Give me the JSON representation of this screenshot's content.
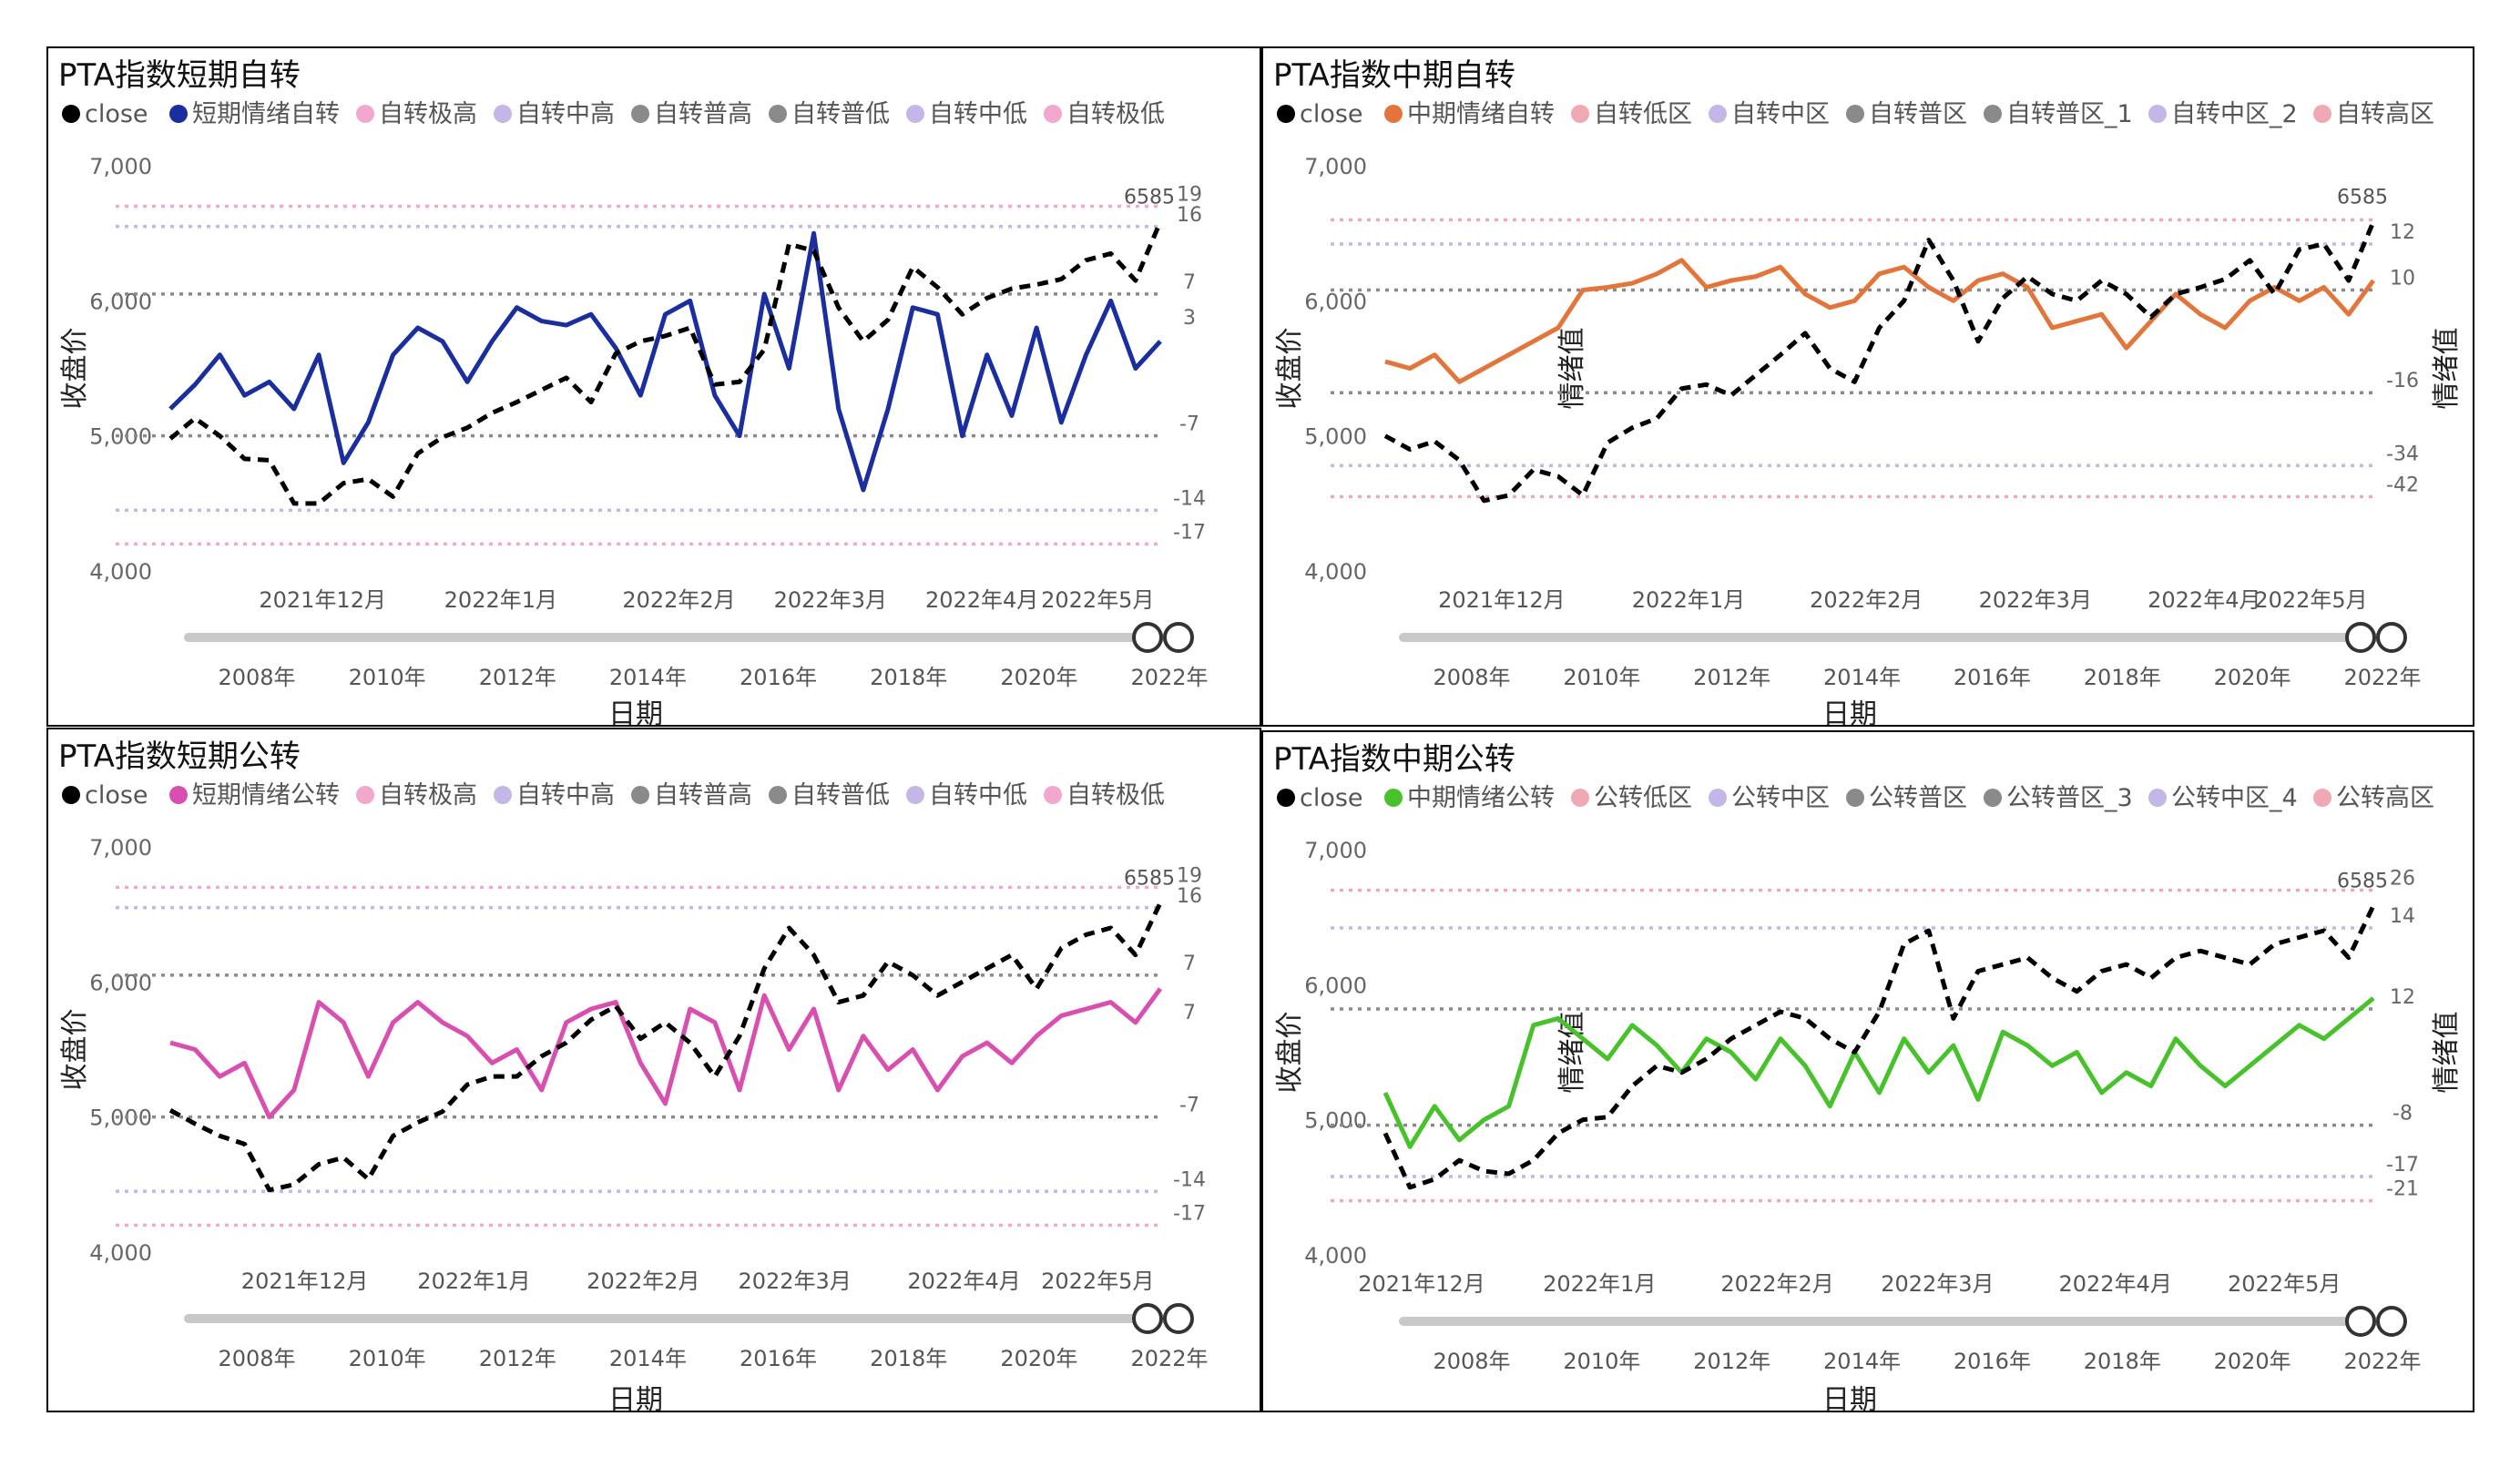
{
  "colors": {
    "close": "#000000",
    "blue": "#1a2ea0",
    "orange": "#e3743a",
    "pink": "#d94fb0",
    "green": "#47c22a",
    "extremeBand": "#f2a7cf",
    "midBand": "#c4b6e6",
    "normBand": "#8a8a8a",
    "lowHigh": "#f0a8b4"
  },
  "chart_data": [
    {
      "type": "line",
      "title": "PTA指数短期自转",
      "legend": [
        "close",
        "短期情绪自转",
        "自转极高",
        "自转中高",
        "自转普高",
        "自转普低",
        "自转中低",
        "自转极低"
      ],
      "legend_colors": [
        "#000000",
        "#1a2ea0",
        "#f2a7cf",
        "#c4b6e6",
        "#8a8a8a",
        "#8a8a8a",
        "#c4b6e6",
        "#f2a7cf"
      ],
      "ylabel": "收盘价",
      "y2label": "",
      "xlabel": "日期",
      "yticks": [
        "7,000",
        "6,000",
        "5,000",
        "4,000"
      ],
      "ylim": [
        4000,
        7000
      ],
      "xticks": [
        "2021年12月",
        "2022年1月",
        "2022年2月",
        "2022年3月",
        "2022年4月",
        "2022年5月"
      ],
      "xtick_pos": [
        0.13,
        0.33,
        0.53,
        0.7,
        0.87,
        1.0
      ],
      "slider_ticks": [
        "2008年",
        "2010年",
        "2012年",
        "2014年",
        "2016年",
        "2018年",
        "2020年",
        "2022年"
      ],
      "close_last": "6585",
      "bands": [
        {
          "name": "自转极高",
          "label": "19",
          "y": 6700,
          "color": "#f2a7cf"
        },
        {
          "name": "自转中高",
          "label": "16",
          "y": 6550,
          "color": "#c4b6e6"
        },
        {
          "name": "自转普高",
          "label": "7",
          "y": 6050,
          "color": "#8a8a8a"
        },
        {
          "name": "自转普低",
          "label": "-7",
          "y": 5000,
          "color": "#8a8a8a"
        },
        {
          "name": "自转中低",
          "label": "-14",
          "y": 4450,
          "color": "#c4b6e6"
        },
        {
          "name": "自转极低",
          "label": "-17",
          "y": 4200,
          "color": "#f2a7cf"
        }
      ],
      "side_labels": [
        {
          "label": "3",
          "y": 5880
        }
      ],
      "close_series": [
        4980,
        5130,
        5000,
        4830,
        4820,
        4500,
        4500,
        4650,
        4680,
        4550,
        4870,
        4990,
        5060,
        5170,
        5250,
        5340,
        5430,
        5250,
        5610,
        5700,
        5740,
        5800,
        5380,
        5400,
        5640,
        6420,
        6370,
        5950,
        5700,
        5860,
        6250,
        6100,
        5900,
        6020,
        6090,
        6120,
        6160,
        6300,
        6350,
        6150,
        6585
      ],
      "sentiment_series": [
        5200,
        5380,
        5600,
        5300,
        5400,
        5200,
        5600,
        4800,
        5100,
        5600,
        5800,
        5700,
        5400,
        5700,
        5950,
        5850,
        5820,
        5900,
        5650,
        5300,
        5900,
        6000,
        5300,
        5000,
        6050,
        5500,
        6500,
        5200,
        4600,
        5200,
        5950,
        5900,
        5000,
        5600,
        5150,
        5800,
        5100,
        5600,
        6000,
        5500,
        5700
      ]
    },
    {
      "type": "line",
      "title": "PTA指数中期自转",
      "legend": [
        "close",
        "中期情绪自转",
        "自转低区",
        "自转中区",
        "自转普区",
        "自转普区_1",
        "自转中区_2",
        "自转高区"
      ],
      "legend_colors": [
        "#000000",
        "#e3743a",
        "#f0a8b4",
        "#c4b6e6",
        "#8a8a8a",
        "#8a8a8a",
        "#c4b6e6",
        "#f0a8b4"
      ],
      "ylabel": "收盘价",
      "y2label": "情绪值",
      "xlabel": "日期",
      "yticks": [
        "7,000",
        "6,000",
        "5,000",
        "4,000"
      ],
      "ylim": [
        4000,
        7000
      ],
      "xticks": [
        "2021年12月",
        "2022年1月",
        "2022年2月",
        "2022年3月",
        "2022年4月",
        "2022年5月"
      ],
      "xtick_pos": [
        0.09,
        0.3,
        0.5,
        0.69,
        0.88,
        1.0
      ],
      "slider_ticks": [
        "2008年",
        "2010年",
        "2012年",
        "2014年",
        "2016年",
        "2018年",
        "2020年",
        "2022年"
      ],
      "close_last": "6585",
      "bands": [
        {
          "name": "自转高区",
          "label": "",
          "y": 6600,
          "color": "#f0a8b4"
        },
        {
          "name": "自转中区_2",
          "label": "12",
          "y": 6420,
          "color": "#c4b6e6"
        },
        {
          "name": "自转普区_1",
          "label": "10",
          "y": 6080,
          "color": "#8a8a8a"
        },
        {
          "name": "自转普区",
          "label": "-16",
          "y": 5320,
          "color": "#8a8a8a"
        },
        {
          "name": "自转中区",
          "label": "-34",
          "y": 4780,
          "color": "#c4b6e6"
        },
        {
          "name": "自转低区",
          "label": "-42",
          "y": 4550,
          "color": "#f0a8b4"
        }
      ],
      "side_labels": [],
      "close_series": [
        5000,
        4900,
        4960,
        4820,
        4520,
        4560,
        4750,
        4700,
        4560,
        4950,
        5060,
        5130,
        5350,
        5380,
        5300,
        5450,
        5600,
        5760,
        5500,
        5400,
        5800,
        6000,
        6450,
        6150,
        5700,
        6020,
        6180,
        6050,
        6000,
        6150,
        6050,
        5880,
        6050,
        6100,
        6160,
        6300,
        6050,
        6380,
        6420,
        6150,
        6585
      ],
      "sentiment_series": [
        5550,
        5500,
        5600,
        5400,
        5500,
        5600,
        5700,
        5800,
        6080,
        6100,
        6130,
        6200,
        6300,
        6100,
        6150,
        6180,
        6250,
        6050,
        5950,
        6000,
        6200,
        6250,
        6100,
        6000,
        6150,
        6200,
        6100,
        5800,
        5850,
        5900,
        5650,
        5850,
        6050,
        5900,
        5800,
        6000,
        6100,
        6000,
        6100,
        5900,
        6150
      ]
    },
    {
      "type": "line",
      "title": "PTA指数短期公转",
      "legend": [
        "close",
        "短期情绪公转",
        "自转极高",
        "自转中高",
        "自转普高",
        "自转普低",
        "自转中低",
        "自转极低"
      ],
      "legend_colors": [
        "#000000",
        "#d94fb0",
        "#f2a7cf",
        "#c4b6e6",
        "#8a8a8a",
        "#8a8a8a",
        "#c4b6e6",
        "#f2a7cf"
      ],
      "ylabel": "收盘价",
      "y2label": "",
      "xlabel": "日期",
      "yticks": [
        "7,000",
        "6,000",
        "5,000",
        "4,000"
      ],
      "ylim": [
        4000,
        7000
      ],
      "xticks": [
        "2021年12月",
        "2022年1月",
        "2022年2月",
        "2022年3月",
        "2022年4月",
        "2022年5月"
      ],
      "xtick_pos": [
        0.11,
        0.3,
        0.49,
        0.66,
        0.85,
        1.0
      ],
      "slider_ticks": [
        "2008年",
        "2010年",
        "2012年",
        "2014年",
        "2016年",
        "2018年",
        "2020年",
        "2022年"
      ],
      "close_last": "6585",
      "bands": [
        {
          "name": "自转极高",
          "label": "19",
          "y": 6700,
          "color": "#f2a7cf"
        },
        {
          "name": "自转中高",
          "label": "16",
          "y": 6550,
          "color": "#c4b6e6"
        },
        {
          "name": "自转普高",
          "label": "7",
          "y": 6050,
          "color": "#8a8a8a"
        },
        {
          "name": "自转普低",
          "label": "-7",
          "y": 5000,
          "color": "#8a8a8a"
        },
        {
          "name": "自转中低",
          "label": "-14",
          "y": 4450,
          "color": "#c4b6e6"
        },
        {
          "name": "自转极低",
          "label": "-17",
          "y": 4200,
          "color": "#f2a7cf"
        }
      ],
      "side_labels": [
        {
          "label": "7",
          "y": 5780
        }
      ],
      "close_series": [
        5050,
        4950,
        4860,
        4800,
        4460,
        4500,
        4650,
        4700,
        4540,
        4860,
        4960,
        5040,
        5240,
        5300,
        5300,
        5450,
        5550,
        5720,
        5820,
        5580,
        5700,
        5550,
        5300,
        5600,
        6100,
        6400,
        6200,
        5850,
        5900,
        6150,
        6050,
        5900,
        6000,
        6100,
        6200,
        5950,
        6250,
        6350,
        6400,
        6200,
        6585
      ],
      "sentiment_series": [
        5550,
        5500,
        5300,
        5400,
        5000,
        5200,
        5850,
        5700,
        5300,
        5700,
        5850,
        5700,
        5600,
        5400,
        5500,
        5200,
        5700,
        5800,
        5850,
        5400,
        5100,
        5800,
        5700,
        5200,
        5900,
        5500,
        5800,
        5200,
        5600,
        5350,
        5500,
        5200,
        5450,
        5550,
        5400,
        5600,
        5750,
        5800,
        5850,
        5700,
        5950
      ]
    },
    {
      "type": "line",
      "title": "PTA指数中期公转",
      "legend": [
        "close",
        "中期情绪公转",
        "公转低区",
        "公转中区",
        "公转普区",
        "公转普区_3",
        "公转中区_4",
        "公转高区"
      ],
      "legend_colors": [
        "#000000",
        "#47c22a",
        "#f0a8b4",
        "#c4b6e6",
        "#8a8a8a",
        "#8a8a8a",
        "#c4b6e6",
        "#f0a8b4"
      ],
      "ylabel": "收盘价",
      "y2label": "情绪值",
      "xlabel": "日期",
      "yticks": [
        "7,000",
        "6,000",
        "5,000",
        "4,000"
      ],
      "ylim": [
        4000,
        7000
      ],
      "xticks": [
        "2021年12月",
        "2022年1月",
        "2022年2月",
        "2022年3月",
        "2022年4月",
        "2022年5月"
      ],
      "xtick_pos": [
        0.0,
        0.2,
        0.4,
        0.58,
        0.78,
        0.97
      ],
      "slider_ticks": [
        "2008年",
        "2010年",
        "2012年",
        "2014年",
        "2016年",
        "2018年",
        "2020年",
        "2022年"
      ],
      "close_last": "6585",
      "bands": [
        {
          "name": "公转高区",
          "label": "26",
          "y": 6700,
          "color": "#f0a8b4"
        },
        {
          "name": "公转中区_4",
          "label": "14",
          "y": 6420,
          "color": "#c4b6e6"
        },
        {
          "name": "公转普区_3",
          "label": "12",
          "y": 5820,
          "color": "#8a8a8a"
        },
        {
          "name": "公转普区",
          "label": "-8",
          "y": 4960,
          "color": "#8a8a8a"
        },
        {
          "name": "公转中区",
          "label": "-17",
          "y": 4580,
          "color": "#c4b6e6"
        },
        {
          "name": "公转低区",
          "label": "-21",
          "y": 4400,
          "color": "#f0a8b4"
        }
      ],
      "side_labels": [],
      "close_series": [
        4900,
        4500,
        4560,
        4700,
        4620,
        4600,
        4700,
        4900,
        5000,
        5020,
        5250,
        5400,
        5350,
        5450,
        5600,
        5700,
        5800,
        5750,
        5600,
        5500,
        5800,
        6300,
        6400,
        5750,
        6100,
        6150,
        6200,
        6050,
        5950,
        6100,
        6150,
        6050,
        6200,
        6250,
        6200,
        6150,
        6300,
        6350,
        6400,
        6200,
        6585
      ],
      "sentiment_series": [
        5200,
        4800,
        5100,
        4850,
        5000,
        5100,
        5700,
        5750,
        5600,
        5450,
        5700,
        5550,
        5350,
        5600,
        5500,
        5300,
        5600,
        5400,
        5100,
        5500,
        5200,
        5600,
        5350,
        5550,
        5150,
        5650,
        5550,
        5400,
        5500,
        5200,
        5350,
        5250,
        5600,
        5400,
        5250,
        5400,
        5550,
        5700,
        5600,
        5750,
        5900
      ]
    }
  ]
}
